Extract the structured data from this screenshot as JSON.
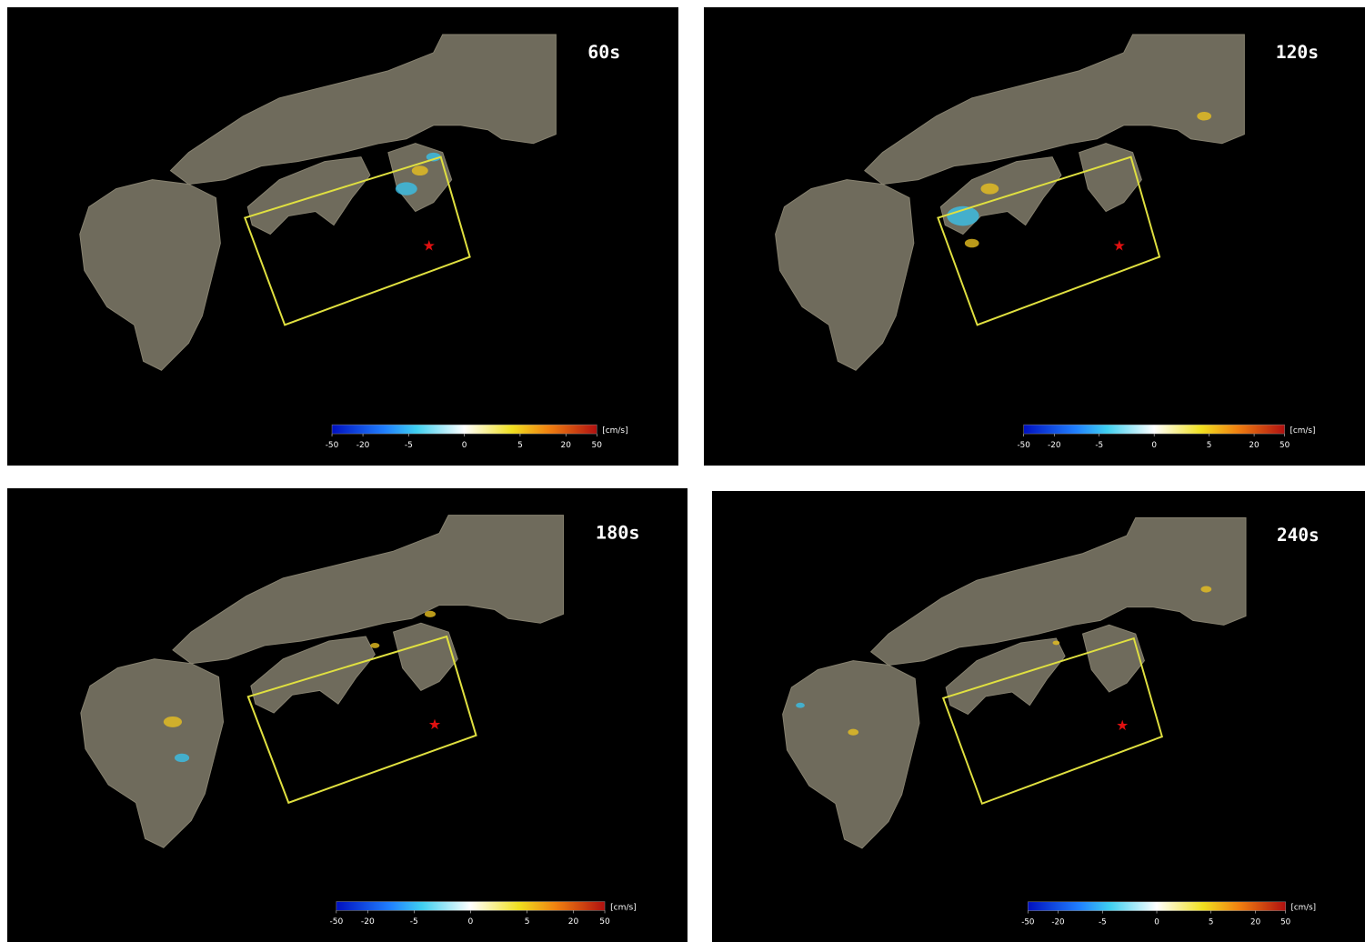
{
  "panels": [
    {
      "time": "60s",
      "colorbar": {
        "ticks": [
          -50,
          -20,
          -5,
          0,
          5,
          20,
          50
        ],
        "unit": "[cm/s]"
      }
    },
    {
      "time": "120s",
      "colorbar": {
        "ticks": [
          -50,
          -20,
          -5,
          0,
          5,
          20,
          50
        ],
        "unit": "[cm/s]"
      }
    },
    {
      "time": "180s",
      "colorbar": {
        "ticks": [
          -50,
          -20,
          -5,
          0,
          5,
          20,
          50
        ],
        "unit": "[cm/s]"
      }
    },
    {
      "time": "240s",
      "colorbar": {
        "ticks": [
          -50,
          -20,
          -5,
          0,
          5,
          20,
          50
        ],
        "unit": "[cm/s]"
      }
    }
  ]
}
